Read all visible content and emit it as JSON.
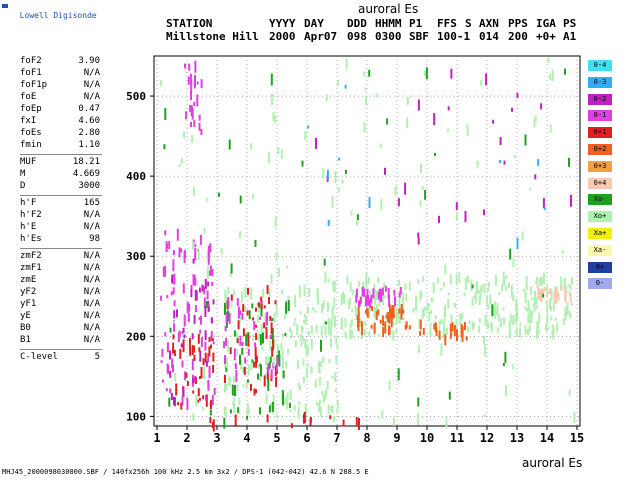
{
  "app": {
    "name": "Lowell Digisonde"
  },
  "header": {
    "labels": [
      "STATION",
      "YYYY",
      "DAY",
      "DDD",
      "HHMM",
      "P1",
      "FFS",
      "S",
      "AXN",
      "PPS",
      "IGA",
      "PS"
    ],
    "values": [
      "Millstone Hill",
      "2000",
      "Apr07",
      "098",
      "0300",
      "SBF",
      "100-1",
      "014",
      "200",
      "+0+",
      "A1"
    ]
  },
  "params": [
    {
      "name": "foF2",
      "value": "3.90"
    },
    {
      "name": "foF1",
      "value": "N/A"
    },
    {
      "name": "foF1p",
      "value": "N/A"
    },
    {
      "name": "foE",
      "value": "N/A"
    },
    {
      "name": "foEp",
      "value": "0.47"
    },
    {
      "name": "fxI",
      "value": "4.60"
    },
    {
      "name": "foEs",
      "value": "2.80"
    },
    {
      "name": "fmin",
      "value": "1.10"
    },
    {
      "name": "MUF",
      "value": "18.21"
    },
    {
      "name": "M",
      "value": "4.669"
    },
    {
      "name": "D",
      "value": "3000"
    },
    {
      "name": "h'F",
      "value": "165"
    },
    {
      "name": "h'F2",
      "value": "N/A"
    },
    {
      "name": "h'E",
      "value": "N/A"
    },
    {
      "name": "h'Es",
      "value": "98"
    },
    {
      "name": "zmF2",
      "value": "N/A"
    },
    {
      "name": "zmF1",
      "value": "N/A"
    },
    {
      "name": "zmE",
      "value": "N/A"
    },
    {
      "name": "yF2",
      "value": "N/A"
    },
    {
      "name": "yF1",
      "value": "N/A"
    },
    {
      "name": "yE",
      "value": "N/A"
    },
    {
      "name": "B0",
      "value": "N/A"
    },
    {
      "name": "B1",
      "value": "N/A"
    },
    {
      "name": "C-level",
      "value": "5"
    }
  ],
  "legend": [
    {
      "label": "0-4",
      "color": "#40e0f0"
    },
    {
      "label": "0-3",
      "color": "#30b0f0"
    },
    {
      "label": "0-2",
      "color": "#c020c0"
    },
    {
      "label": "0-1",
      "color": "#e040e0"
    },
    {
      "label": "0+1",
      "color": "#e02020"
    },
    {
      "label": "0+2",
      "color": "#f06020"
    },
    {
      "label": "0+3",
      "color": "#f0a040"
    },
    {
      "label": "0+4",
      "color": "#f8c8b0"
    },
    {
      "label": "Xo-",
      "color": "#20a020"
    },
    {
      "label": "Xo+",
      "color": "#b0f0b0"
    },
    {
      "label": "Xa+",
      "color": "#f0f000"
    },
    {
      "label": "Xa-",
      "color": "#f8f8b0"
    },
    {
      "label": "0+",
      "color": "#2040a0"
    },
    {
      "label": "0-",
      "color": "#a0a8f0"
    }
  ],
  "footer": "MHJ45_2000098030000.SBF / 140fx256h 100 kHz 2.5 km 3x2 / DPS-1 (042-042) 42.6 N 288.5 E",
  "chart_data": {
    "type": "scatter",
    "title": "auroral Es",
    "xlabel": "auroral Es",
    "ylabel": "",
    "xlim": [
      0.9,
      15.1
    ],
    "ylim": [
      88,
      550
    ],
    "x_ticks": [
      1,
      2,
      3,
      4,
      5,
      6,
      7,
      8,
      9,
      10,
      11,
      12,
      13,
      14,
      15
    ],
    "y_ticks": [
      100,
      200,
      300,
      400,
      500
    ],
    "grid": "dotted",
    "legend_position": "right",
    "clusters": [
      {
        "name": "0-1",
        "x": [
          1.9,
          2.5
        ],
        "y": [
          450,
          545
        ],
        "density": 22
      },
      {
        "name": "0-1",
        "x": [
          1.1,
          2.9
        ],
        "y": [
          115,
          330
        ],
        "density": 90
      },
      {
        "name": "0+1",
        "x": [
          1.5,
          2.9
        ],
        "y": [
          110,
          200
        ],
        "density": 40
      },
      {
        "name": "0-2",
        "x": [
          1.2,
          2.9
        ],
        "y": [
          115,
          300
        ],
        "density": 30
      },
      {
        "name": "Xo+",
        "x": [
          3.2,
          7.0
        ],
        "y": [
          100,
          260
        ],
        "density": 160
      },
      {
        "name": "Xo-",
        "x": [
          3.2,
          5.5
        ],
        "y": [
          100,
          240
        ],
        "density": 40
      },
      {
        "name": "0+1",
        "x": [
          3.2,
          5.0
        ],
        "y": [
          130,
          260
        ],
        "density": 45
      },
      {
        "name": "0-1",
        "x": [
          3.2,
          5.0
        ],
        "y": [
          150,
          250
        ],
        "density": 30
      },
      {
        "name": "Xo+",
        "x": [
          6.5,
          14.9
        ],
        "y": [
          200,
          275
        ],
        "density": 260
      },
      {
        "name": "0-1",
        "x": [
          7.6,
          9.1
        ],
        "y": [
          240,
          265
        ],
        "density": 30
      },
      {
        "name": "0+2",
        "x": [
          7.6,
          9.4
        ],
        "y": [
          205,
          235
        ],
        "density": 40
      },
      {
        "name": "0+2",
        "x": [
          9.6,
          11.3
        ],
        "y": [
          195,
          215
        ],
        "density": 20
      },
      {
        "name": "0+4",
        "x": [
          13.6,
          14.9
        ],
        "y": [
          240,
          265
        ],
        "density": 25
      },
      {
        "name": "Xo+",
        "x": [
          1.0,
          15.0
        ],
        "y": [
          90,
          545
        ],
        "density": 120
      },
      {
        "name": "Xo-",
        "x": [
          1.0,
          15.0
        ],
        "y": [
          90,
          545
        ],
        "density": 40
      },
      {
        "name": "0-2",
        "x": [
          6.0,
          15.0
        ],
        "y": [
          300,
          545
        ],
        "density": 25
      },
      {
        "name": "0-3",
        "x": [
          6.0,
          15.0
        ],
        "y": [
          300,
          545
        ],
        "density": 10
      },
      {
        "name": "0+1",
        "x": [
          2.5,
          8.0
        ],
        "y": [
          88,
          100
        ],
        "density": 14
      }
    ]
  }
}
